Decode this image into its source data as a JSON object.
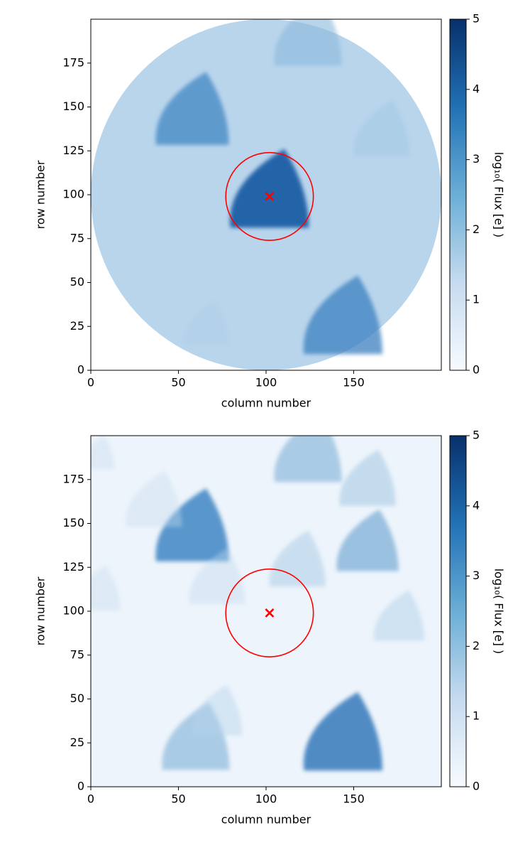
{
  "chart_data": [
    {
      "type": "image",
      "xlabel": "column number",
      "ylabel": "row number",
      "xlim": [
        0,
        200
      ],
      "ylim": [
        0,
        200
      ],
      "xticks": [
        0,
        50,
        100,
        150
      ],
      "yticks": [
        0,
        25,
        50,
        75,
        100,
        125,
        150,
        175
      ],
      "colorbar": {
        "label": "log₁₀( Flux [e] )",
        "lim": [
          0,
          5
        ],
        "ticks": [
          0,
          1,
          2,
          3,
          4,
          5
        ]
      },
      "circle": {
        "x": 102,
        "y": 99,
        "radius": 25,
        "color": "#ff0000"
      },
      "marker": {
        "x": 102,
        "y": 99,
        "color": "#ff0000"
      }
    },
    {
      "type": "image",
      "xlabel": "column number",
      "ylabel": "row number",
      "xlim": [
        0,
        200
      ],
      "ylim": [
        0,
        200
      ],
      "xticks": [
        0,
        50,
        100,
        150
      ],
      "yticks": [
        0,
        25,
        50,
        75,
        100,
        125,
        150,
        175
      ],
      "colorbar": {
        "label": "log₁₀( Flux [e] )",
        "lim": [
          0,
          5
        ],
        "ticks": [
          0,
          1,
          2,
          3,
          4,
          5
        ]
      },
      "circle": {
        "x": 102,
        "y": 99,
        "radius": 25,
        "color": "#ff0000"
      },
      "marker": {
        "x": 102,
        "y": 99,
        "color": "#ff0000"
      }
    }
  ]
}
